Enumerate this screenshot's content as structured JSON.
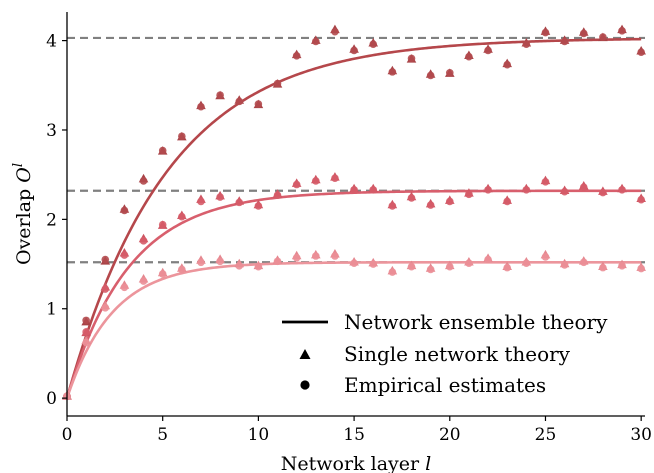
{
  "chart_data": {
    "type": "scatter",
    "xlabel": "Network layer l",
    "ylabel": "Overlap O^l",
    "xlim": [
      0,
      30.2
    ],
    "ylim": [
      -0.2,
      4.32
    ],
    "x_ticks": [
      0,
      5,
      10,
      15,
      20,
      25,
      30
    ],
    "y_ticks": [
      0,
      1,
      2,
      3,
      4
    ],
    "grid": false,
    "legend_position": "lower-right",
    "legend": {
      "ensemble": "Network ensemble theory",
      "single": "Single network theory",
      "empirical": "Empirical estimates"
    },
    "reference_lines": {
      "style": "dashed",
      "color": "#808080",
      "values": [
        4.03,
        2.32,
        1.52
      ]
    },
    "series": [
      {
        "color": "#b5474b",
        "dot_color": "#b34a4e",
        "tri_color": "#a84347",
        "asymptote": 4.03,
        "rate": 0.19,
        "x": [
          0,
          1,
          2,
          3,
          4,
          5,
          6,
          7,
          8,
          9,
          10,
          11,
          12,
          13,
          14,
          15,
          16,
          17,
          18,
          19,
          20,
          21,
          22,
          23,
          24,
          25,
          26,
          27,
          28,
          29,
          30
        ],
        "empirical": [
          0.02,
          0.87,
          1.55,
          2.1,
          2.43,
          2.77,
          2.93,
          3.26,
          3.39,
          3.32,
          3.29,
          3.52,
          3.83,
          3.99,
          4.1,
          3.89,
          3.96,
          3.65,
          3.8,
          3.61,
          3.64,
          3.82,
          3.89,
          3.73,
          3.96,
          4.09,
          3.99,
          4.08,
          4.04,
          4.11,
          3.87
        ],
        "single": [
          0.02,
          0.85,
          1.53,
          2.11,
          2.45,
          2.76,
          2.92,
          3.27,
          3.38,
          3.33,
          3.28,
          3.51,
          3.84,
          4.0,
          4.12,
          3.9,
          3.97,
          3.66,
          3.79,
          3.62,
          3.63,
          3.83,
          3.9,
          3.74,
          3.97,
          4.1,
          4.0,
          4.09,
          4.03,
          4.12,
          3.88
        ]
      },
      {
        "color": "#d85f6d",
        "dot_color": "#d65c69",
        "tri_color": "#cd5562",
        "asymptote": 2.32,
        "rate": 0.31,
        "x": [
          0,
          1,
          2,
          3,
          4,
          5,
          6,
          7,
          8,
          9,
          10,
          11,
          12,
          13,
          14,
          15,
          16,
          17,
          18,
          19,
          20,
          21,
          22,
          23,
          24,
          25,
          26,
          27,
          28,
          29,
          30
        ],
        "empirical": [
          0.02,
          0.74,
          1.22,
          1.6,
          1.76,
          1.94,
          2.03,
          2.2,
          2.25,
          2.19,
          2.15,
          2.27,
          2.39,
          2.43,
          2.46,
          2.33,
          2.33,
          2.15,
          2.24,
          2.16,
          2.2,
          2.28,
          2.33,
          2.2,
          2.33,
          2.42,
          2.31,
          2.36,
          2.3,
          2.33,
          2.22
        ],
        "single": [
          0.02,
          0.73,
          1.24,
          1.62,
          1.78,
          1.93,
          2.04,
          2.22,
          2.26,
          2.2,
          2.16,
          2.28,
          2.4,
          2.44,
          2.47,
          2.34,
          2.34,
          2.16,
          2.25,
          2.17,
          2.21,
          2.29,
          2.34,
          2.21,
          2.34,
          2.43,
          2.32,
          2.37,
          2.31,
          2.34,
          2.23
        ]
      },
      {
        "color": "#ec959c",
        "dot_color": "#eb8f97",
        "tri_color": "#e4878f",
        "asymptote": 1.52,
        "rate": 0.42,
        "x": [
          0,
          1,
          2,
          3,
          4,
          5,
          6,
          7,
          8,
          9,
          10,
          11,
          12,
          13,
          14,
          15,
          16,
          17,
          18,
          19,
          20,
          21,
          22,
          23,
          24,
          25,
          26,
          27,
          28,
          29,
          30
        ],
        "empirical": [
          0.02,
          0.62,
          1.01,
          1.24,
          1.31,
          1.39,
          1.44,
          1.52,
          1.53,
          1.48,
          1.47,
          1.53,
          1.57,
          1.59,
          1.59,
          1.51,
          1.5,
          1.41,
          1.47,
          1.44,
          1.47,
          1.51,
          1.55,
          1.46,
          1.51,
          1.58,
          1.49,
          1.52,
          1.46,
          1.48,
          1.45
        ],
        "single": [
          0.02,
          0.64,
          1.03,
          1.26,
          1.33,
          1.4,
          1.45,
          1.54,
          1.55,
          1.5,
          1.48,
          1.54,
          1.59,
          1.6,
          1.61,
          1.52,
          1.51,
          1.42,
          1.48,
          1.45,
          1.48,
          1.52,
          1.56,
          1.47,
          1.52,
          1.6,
          1.5,
          1.53,
          1.47,
          1.49,
          1.46
        ]
      }
    ]
  }
}
